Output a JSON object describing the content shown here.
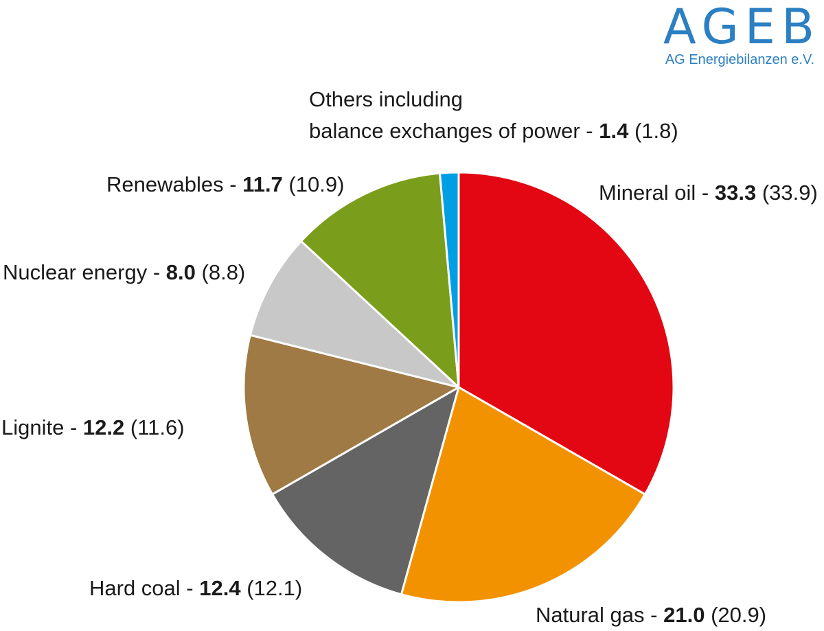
{
  "logo": {
    "mark": "AGEB",
    "subtitle": "AG Energiebilanzen e.V."
  },
  "colors": {
    "mineral_oil": "#e30613",
    "natural_gas": "#f39200",
    "hard_coal": "#646464",
    "lignite": "#a07a44",
    "nuclear": "#c8c8c8",
    "renewables": "#7a9e1b",
    "others": "#009fe3"
  },
  "chart_data": {
    "type": "pie",
    "unit": "%",
    "start": "12 o'clock",
    "direction": "clockwise",
    "slices": [
      {
        "key": "mineral_oil",
        "name": "Mineral oil",
        "value": 33.3,
        "previous": 33.9,
        "value_text": "33.3",
        "previous_text": "(33.9)"
      },
      {
        "key": "natural_gas",
        "name": "Natural gas",
        "value": 21.0,
        "previous": 20.9,
        "value_text": "21.0",
        "previous_text": "(20.9)"
      },
      {
        "key": "hard_coal",
        "name": "Hard coal",
        "value": 12.4,
        "previous": 12.1,
        "value_text": "12.4",
        "previous_text": "(12.1)"
      },
      {
        "key": "lignite",
        "name": "Lignite",
        "value": 12.2,
        "previous": 11.6,
        "value_text": "12.2",
        "previous_text": "(11.6)"
      },
      {
        "key": "nuclear",
        "name": "Nuclear energy",
        "value": 8.0,
        "previous": 8.8,
        "value_text": "8.0",
        "previous_text": "(8.8)"
      },
      {
        "key": "renewables",
        "name": "Renewables",
        "value": 11.7,
        "previous": 10.9,
        "value_text": "11.7",
        "previous_text": "(10.9)"
      },
      {
        "key": "others",
        "name": "Others including",
        "name_line2": "balance exchanges of power",
        "value": 1.4,
        "previous": 1.8,
        "value_text": "1.4",
        "previous_text": "(1.8)"
      }
    ]
  }
}
